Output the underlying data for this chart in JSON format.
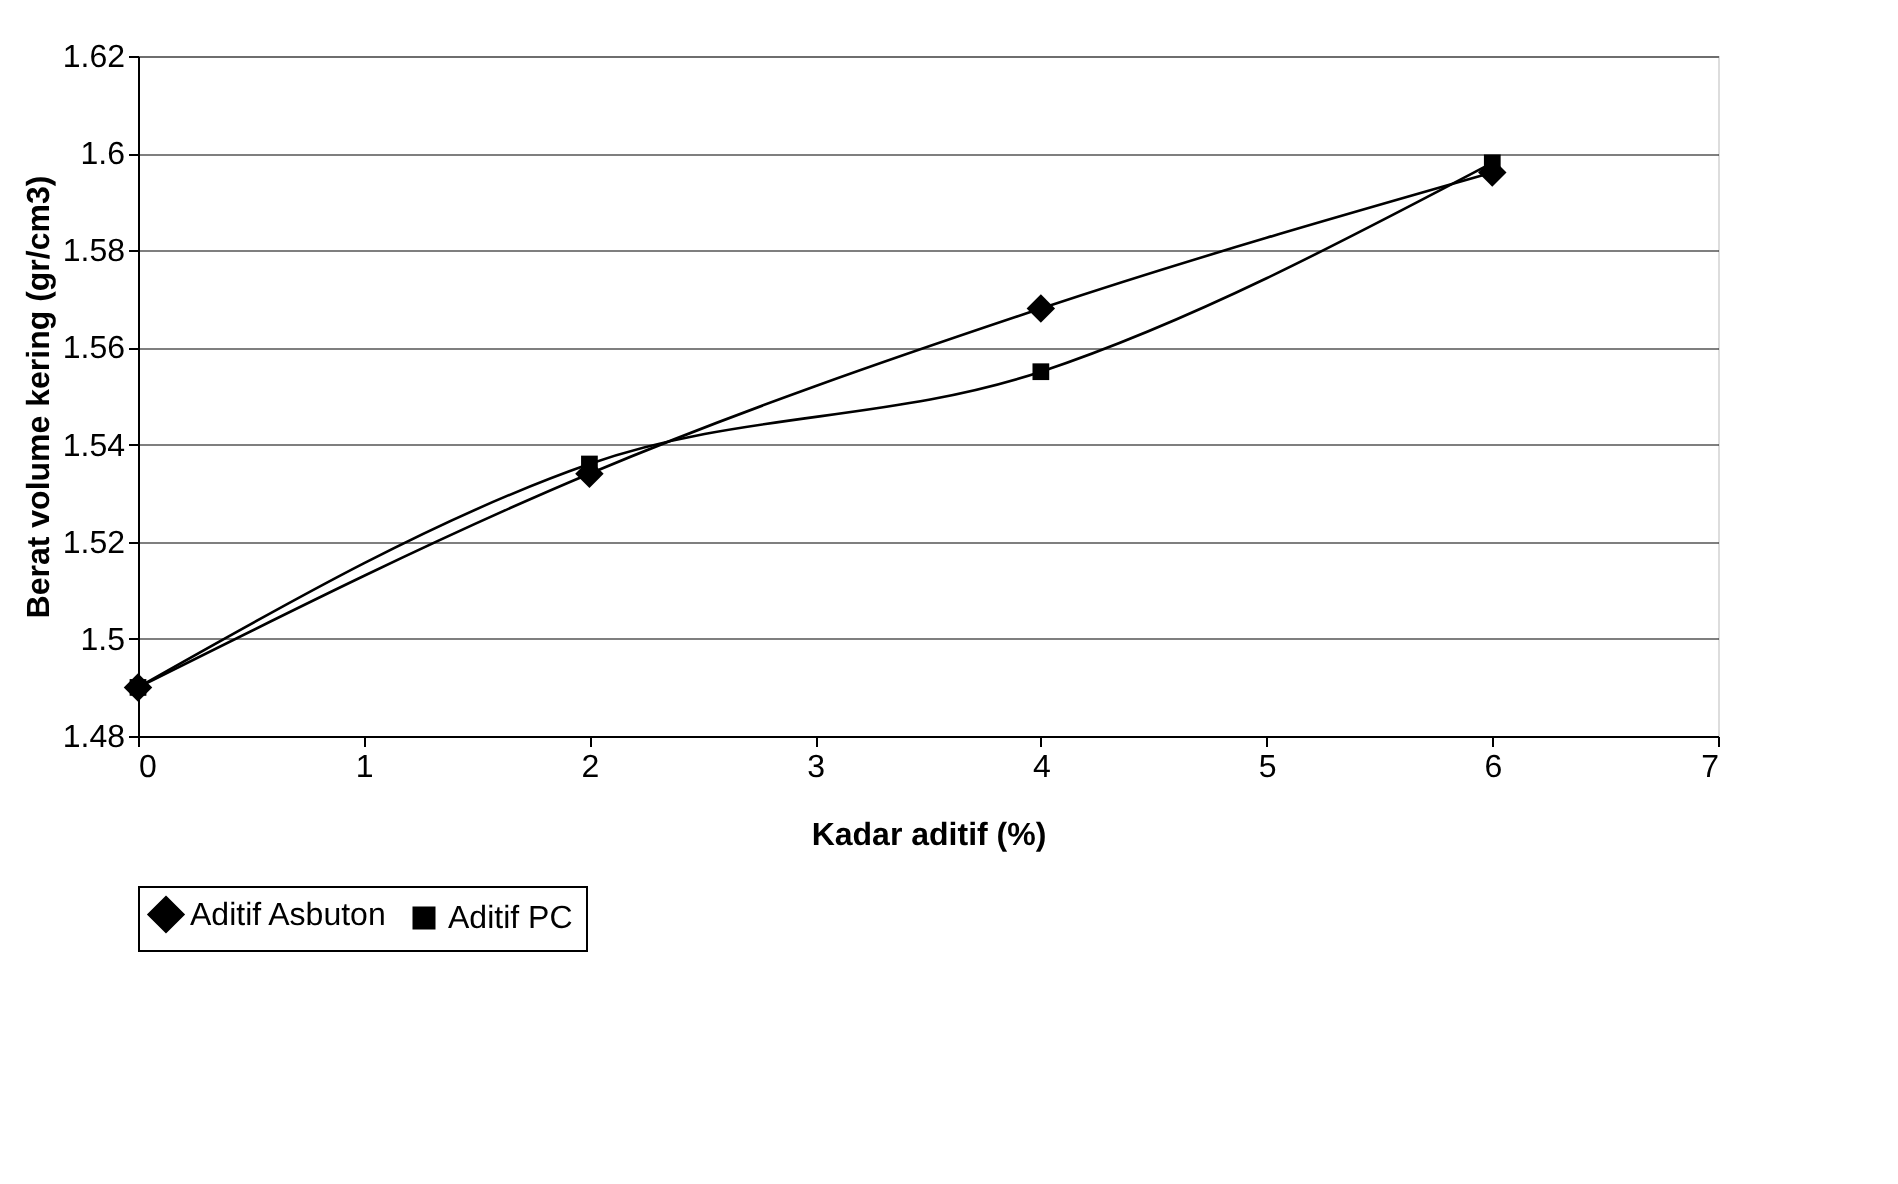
{
  "chart_data": {
    "type": "line",
    "xlabel": "Kadar aditif (%)",
    "ylabel": "Berat volume kering (gr/cm3)",
    "x": [
      0,
      2,
      4,
      6
    ],
    "series": [
      {
        "name": "Aditif Asbuton",
        "color": "#000000",
        "marker": "diamond",
        "values": [
          1.49,
          1.534,
          1.568,
          1.596
        ]
      },
      {
        "name": "Aditif PC",
        "color": "#000000",
        "marker": "square",
        "values": [
          1.49,
          1.536,
          1.555,
          1.598
        ]
      }
    ],
    "xlim": [
      0,
      7
    ],
    "xticks": [
      0,
      1,
      2,
      3,
      4,
      5,
      6,
      7
    ],
    "ylim": [
      1.48,
      1.62
    ],
    "yticks": [
      1.48,
      1.5,
      1.52,
      1.54,
      1.56,
      1.58,
      1.6,
      1.62
    ],
    "grid": "y",
    "legend": "bottom",
    "line_style": "solid"
  }
}
